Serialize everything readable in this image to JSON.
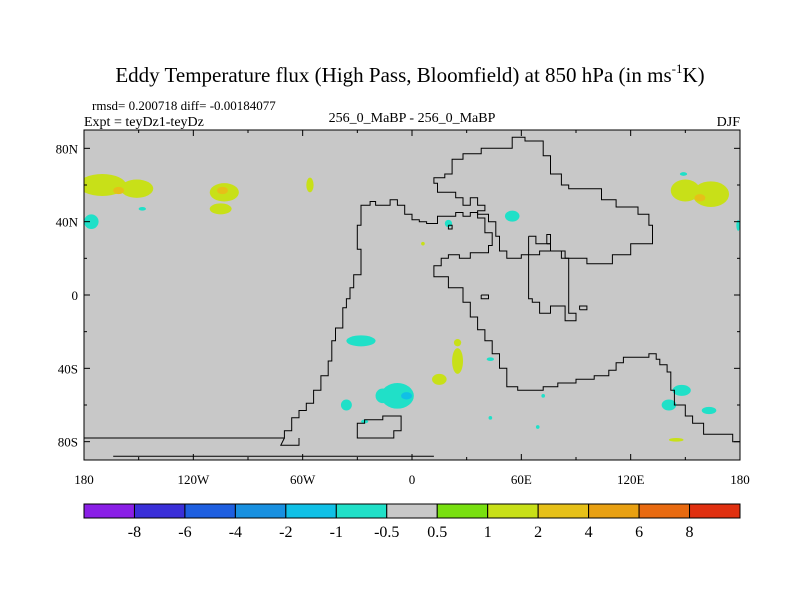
{
  "chart_data": {
    "type": "heatmap",
    "title": {
      "main": "Eddy Temperature flux (High Pass, Bloomfield) at 850 hPa (in ms",
      "sup": "-1",
      "end": "K)"
    },
    "stats": "rmsd= 0.200718 diff= -0.00184077",
    "expt": "Expt = teyDz1-teyDz",
    "center_label": "256_0_MaBP - 256_0_MaBP",
    "season": "DJF",
    "x_axis": {
      "range": [
        -180,
        180
      ],
      "ticks": [
        {
          "value": -180,
          "label": "180"
        },
        {
          "value": -120,
          "label": "120W"
        },
        {
          "value": -60,
          "label": "60W"
        },
        {
          "value": 0,
          "label": "0"
        },
        {
          "value": 60,
          "label": "60E"
        },
        {
          "value": 120,
          "label": "120E"
        },
        {
          "value": 180,
          "label": "180"
        }
      ]
    },
    "y_axis": {
      "range": [
        -90,
        90
      ],
      "ticks": [
        {
          "value": 80,
          "label": "80N"
        },
        {
          "value": 40,
          "label": "40N"
        },
        {
          "value": 0,
          "label": "0"
        },
        {
          "value": -40,
          "label": "40S"
        },
        {
          "value": -80,
          "label": "80S"
        }
      ]
    },
    "background_color": "#c8c8c8",
    "colorbar": {
      "colors": [
        "#8a1fe6",
        "#3a2fd8",
        "#1e5fe0",
        "#1890e0",
        "#10c0e6",
        "#20e0c8",
        "#c8c8c8",
        "#78e010",
        "#c8e018",
        "#e6c018",
        "#e8a012",
        "#e86a10",
        "#e03010"
      ],
      "labels": [
        "-8",
        "-6",
        "-4",
        "-2",
        "-1",
        "-0.5",
        "0.5",
        "1",
        "2",
        "4",
        "6",
        "8"
      ]
    },
    "anomalies": [
      {
        "lon": -170,
        "lat": 60,
        "rx": 13,
        "ry": 6,
        "value": 1
      },
      {
        "lon": -151,
        "lat": 58,
        "rx": 9,
        "ry": 5,
        "value": 1
      },
      {
        "lon": -161,
        "lat": 57,
        "rx": 3,
        "ry": 2,
        "value": 2
      },
      {
        "lon": -176,
        "lat": 40,
        "rx": 4,
        "ry": 4,
        "value": -1
      },
      {
        "lon": -103,
        "lat": 56,
        "rx": 8,
        "ry": 5,
        "value": 1
      },
      {
        "lon": -105,
        "lat": 47,
        "rx": 6,
        "ry": 3,
        "value": 1
      },
      {
        "lon": -104,
        "lat": 57,
        "rx": 3,
        "ry": 2,
        "value": 2
      },
      {
        "lon": -56,
        "lat": 60,
        "rx": 2,
        "ry": 4,
        "value": 1
      },
      {
        "lon": -148,
        "lat": 47,
        "rx": 2,
        "ry": 1,
        "value": -1
      },
      {
        "lon": 150,
        "lat": 57,
        "rx": 8,
        "ry": 6,
        "value": 1
      },
      {
        "lon": 164,
        "lat": 55,
        "rx": 10,
        "ry": 7,
        "value": 1
      },
      {
        "lon": 158,
        "lat": 53,
        "rx": 3,
        "ry": 2,
        "value": 2
      },
      {
        "lon": 149,
        "lat": 66,
        "rx": 2,
        "ry": 1,
        "value": -1
      },
      {
        "lon": 179,
        "lat": 38,
        "rx": 1,
        "ry": 3,
        "value": -1
      },
      {
        "lon": 55,
        "lat": 43,
        "rx": 4,
        "ry": 3,
        "value": -1
      },
      {
        "lon": 20,
        "lat": 39,
        "rx": 2,
        "ry": 2,
        "value": -1
      },
      {
        "lon": 6,
        "lat": 28,
        "rx": 1,
        "ry": 1,
        "value": 1
      },
      {
        "lon": -28,
        "lat": -25,
        "rx": 8,
        "ry": 3,
        "value": -1
      },
      {
        "lon": 25,
        "lat": -36,
        "rx": 3,
        "ry": 7,
        "value": 1
      },
      {
        "lon": 25,
        "lat": -26,
        "rx": 2,
        "ry": 2,
        "value": 1
      },
      {
        "lon": 15,
        "lat": -46,
        "rx": 4,
        "ry": 3,
        "value": 1
      },
      {
        "lon": 43,
        "lat": -35,
        "rx": 2,
        "ry": 1,
        "value": -1
      },
      {
        "lon": -8,
        "lat": -55,
        "rx": 9,
        "ry": 7,
        "value": -1
      },
      {
        "lon": -16,
        "lat": -55,
        "rx": 4,
        "ry": 4,
        "value": -1
      },
      {
        "lon": -3,
        "lat": -55,
        "rx": 3,
        "ry": 2,
        "value": -2
      },
      {
        "lon": -36,
        "lat": -60,
        "rx": 3,
        "ry": 3,
        "value": -1
      },
      {
        "lon": -26,
        "lat": -69,
        "rx": 2,
        "ry": 1,
        "value": -1
      },
      {
        "lon": 148,
        "lat": -52,
        "rx": 5,
        "ry": 3,
        "value": -1
      },
      {
        "lon": 141,
        "lat": -60,
        "rx": 4,
        "ry": 3,
        "value": -1
      },
      {
        "lon": 163,
        "lat": -63,
        "rx": 4,
        "ry": 2,
        "value": -1
      },
      {
        "lon": 145,
        "lat": -79,
        "rx": 4,
        "ry": 1,
        "value": 1
      },
      {
        "lon": 43,
        "lat": -67,
        "rx": 1,
        "ry": 1,
        "value": -1
      },
      {
        "lon": 69,
        "lat": -72,
        "rx": 1,
        "ry": 1,
        "value": -1
      },
      {
        "lon": 72,
        "lat": -55,
        "rx": 1,
        "ry": 1,
        "value": -1
      }
    ],
    "coastlines": [
      [
        [
          -180,
          -78
        ],
        [
          -70,
          -78
        ],
        [
          -70,
          -74
        ],
        [
          -66,
          -74
        ],
        [
          -66,
          -67
        ],
        [
          -62,
          -67
        ],
        [
          -62,
          -63
        ],
        [
          -58,
          -63
        ],
        [
          -58,
          -59
        ],
        [
          -54,
          -59
        ],
        [
          -54,
          -52
        ],
        [
          -50,
          -52
        ],
        [
          -50,
          -44
        ],
        [
          -46,
          -44
        ],
        [
          -46,
          -36
        ],
        [
          -44,
          -36
        ],
        [
          -44,
          -25
        ],
        [
          -42,
          -25
        ],
        [
          -42,
          -18
        ],
        [
          -38,
          -18
        ],
        [
          -38,
          -7
        ],
        [
          -36,
          -7
        ],
        [
          -36,
          -2
        ],
        [
          -34,
          -2
        ],
        [
          -34,
          4
        ],
        [
          -32,
          4
        ],
        [
          -32,
          11
        ],
        [
          -28,
          11
        ],
        [
          -28,
          25
        ],
        [
          -30,
          25
        ],
        [
          -30,
          38
        ],
        [
          -28,
          38
        ],
        [
          -28,
          49
        ],
        [
          -23,
          49
        ],
        [
          -23,
          51
        ],
        [
          -20,
          51
        ],
        [
          -20,
          49
        ],
        [
          -12,
          49
        ],
        [
          -12,
          52
        ],
        [
          -8,
          52
        ],
        [
          -8,
          49
        ],
        [
          -4,
          49
        ],
        [
          -4,
          44
        ],
        [
          0,
          44
        ],
        [
          0,
          41
        ],
        [
          4,
          41
        ],
        [
          4,
          40
        ],
        [
          8,
          40
        ],
        [
          8,
          39
        ],
        [
          14,
          39
        ],
        [
          14,
          43
        ],
        [
          24,
          43
        ],
        [
          24,
          45
        ],
        [
          28,
          45
        ],
        [
          28,
          43
        ],
        [
          32,
          43
        ],
        [
          32,
          45
        ],
        [
          36,
          45
        ],
        [
          36,
          42
        ],
        [
          40,
          42
        ],
        [
          40,
          34
        ],
        [
          44,
          34
        ],
        [
          44,
          27
        ],
        [
          42,
          27
        ],
        [
          42,
          23
        ],
        [
          32,
          23
        ],
        [
          32,
          20
        ],
        [
          26,
          20
        ],
        [
          26,
          22
        ],
        [
          20,
          22
        ],
        [
          20,
          20
        ],
        [
          16,
          20
        ],
        [
          16,
          16
        ],
        [
          12,
          16
        ],
        [
          12,
          10
        ],
        [
          20,
          10
        ],
        [
          20,
          4
        ],
        [
          28,
          4
        ],
        [
          28,
          -4
        ],
        [
          32,
          -4
        ],
        [
          32,
          -12
        ],
        [
          36,
          -12
        ],
        [
          36,
          -19
        ],
        [
          40,
          -19
        ],
        [
          40,
          -25
        ],
        [
          44,
          -25
        ],
        [
          44,
          -32
        ],
        [
          48,
          -32
        ],
        [
          48,
          -40
        ],
        [
          52,
          -40
        ],
        [
          52,
          -50
        ],
        [
          58,
          -50
        ],
        [
          58,
          -52
        ],
        [
          72,
          -52
        ],
        [
          72,
          -50
        ],
        [
          80,
          -50
        ],
        [
          80,
          -48
        ],
        [
          90,
          -48
        ],
        [
          90,
          -46
        ],
        [
          100,
          -46
        ],
        [
          100,
          -44
        ],
        [
          108,
          -44
        ],
        [
          108,
          -41
        ],
        [
          112,
          -41
        ],
        [
          112,
          -37
        ],
        [
          116,
          -37
        ],
        [
          116,
          -34
        ],
        [
          130,
          -34
        ],
        [
          130,
          -32
        ],
        [
          134,
          -32
        ],
        [
          134,
          -35
        ],
        [
          136,
          -35
        ],
        [
          136,
          -38
        ],
        [
          140,
          -38
        ],
        [
          140,
          -42
        ],
        [
          142,
          -42
        ],
        [
          142,
          -52
        ],
        [
          144,
          -52
        ],
        [
          144,
          -60
        ],
        [
          150,
          -60
        ],
        [
          150,
          -66
        ],
        [
          154,
          -66
        ],
        [
          154,
          -70
        ],
        [
          160,
          -70
        ],
        [
          160,
          -76
        ],
        [
          176,
          -76
        ],
        [
          176,
          -80
        ],
        [
          180,
          -80
        ]
      ],
      [
        [
          -70,
          -78
        ],
        [
          -72,
          -82
        ],
        [
          -62,
          -82
        ],
        [
          -62,
          -78
        ]
      ],
      [
        [
          12,
          -88
        ],
        [
          -164,
          -88
        ]
      ],
      [
        [
          -30,
          -76
        ],
        [
          -30,
          -70
        ],
        [
          -26,
          -70
        ],
        [
          -26,
          -68
        ],
        [
          -16,
          -68
        ],
        [
          -16,
          -66
        ],
        [
          -6,
          -66
        ],
        [
          -6,
          -74
        ],
        [
          -10,
          -74
        ],
        [
          -10,
          -78
        ],
        [
          -30,
          -78
        ],
        [
          -30,
          -76
        ]
      ],
      [
        [
          22,
          72
        ],
        [
          22,
          74
        ],
        [
          28,
          74
        ],
        [
          28,
          77
        ],
        [
          38,
          77
        ],
        [
          38,
          80
        ],
        [
          55,
          80
        ],
        [
          55,
          86
        ],
        [
          62,
          86
        ],
        [
          62,
          84
        ],
        [
          72,
          84
        ],
        [
          72,
          76
        ],
        [
          76,
          76
        ],
        [
          76,
          66
        ],
        [
          82,
          66
        ],
        [
          82,
          60
        ],
        [
          86,
          60
        ],
        [
          86,
          58
        ],
        [
          104,
          58
        ],
        [
          104,
          52
        ],
        [
          112,
          52
        ],
        [
          112,
          48
        ],
        [
          124,
          48
        ],
        [
          124,
          44
        ],
        [
          130,
          44
        ],
        [
          130,
          38
        ],
        [
          132,
          38
        ],
        [
          132,
          28
        ],
        [
          120,
          28
        ],
        [
          120,
          22
        ],
        [
          110,
          22
        ],
        [
          110,
          17
        ],
        [
          96,
          17
        ],
        [
          96,
          20
        ],
        [
          84,
          20
        ],
        [
          84,
          24
        ],
        [
          70,
          24
        ],
        [
          70,
          22
        ],
        [
          60,
          22
        ],
        [
          60,
          20
        ],
        [
          52,
          20
        ],
        [
          52,
          24
        ],
        [
          48,
          24
        ],
        [
          48,
          32
        ],
        [
          46,
          32
        ],
        [
          46,
          40
        ],
        [
          42,
          40
        ],
        [
          42,
          44
        ],
        [
          36,
          44
        ],
        [
          36,
          46
        ],
        [
          40,
          46
        ],
        [
          40,
          49
        ],
        [
          36,
          49
        ],
        [
          36,
          53
        ],
        [
          32,
          53
        ],
        [
          32,
          49
        ],
        [
          28,
          49
        ],
        [
          28,
          53
        ],
        [
          24,
          53
        ],
        [
          24,
          56
        ],
        [
          14,
          56
        ],
        [
          14,
          61
        ],
        [
          12,
          61
        ],
        [
          12,
          64
        ],
        [
          18,
          64
        ],
        [
          18,
          66
        ],
        [
          22,
          66
        ],
        [
          22,
          72
        ]
      ],
      [
        [
          74,
          28
        ],
        [
          76,
          28
        ],
        [
          76,
          33
        ],
        [
          74,
          33
        ],
        [
          74,
          28
        ]
      ],
      [
        [
          64,
          32
        ],
        [
          68,
          32
        ],
        [
          68,
          28
        ],
        [
          76,
          28
        ],
        [
          76,
          24
        ],
        [
          82,
          24
        ],
        [
          82,
          20
        ],
        [
          86,
          20
        ],
        [
          86,
          -10
        ],
        [
          90,
          -10
        ],
        [
          90,
          -14
        ],
        [
          84,
          -14
        ],
        [
          84,
          -6
        ],
        [
          76,
          -6
        ],
        [
          76,
          -10
        ],
        [
          70,
          -10
        ],
        [
          70,
          -4
        ],
        [
          66,
          -4
        ],
        [
          66,
          -2
        ],
        [
          64,
          -2
        ],
        [
          64,
          32
        ]
      ],
      [
        [
          20,
          38
        ],
        [
          22,
          38
        ],
        [
          22,
          36
        ],
        [
          20,
          36
        ],
        [
          20,
          38
        ]
      ],
      [
        [
          38,
          0
        ],
        [
          42,
          0
        ],
        [
          42,
          -2
        ],
        [
          38,
          -2
        ],
        [
          38,
          0
        ]
      ],
      [
        [
          92,
          -8
        ],
        [
          96,
          -8
        ],
        [
          96,
          -6
        ],
        [
          92,
          -6
        ],
        [
          92,
          -8
        ]
      ]
    ]
  }
}
